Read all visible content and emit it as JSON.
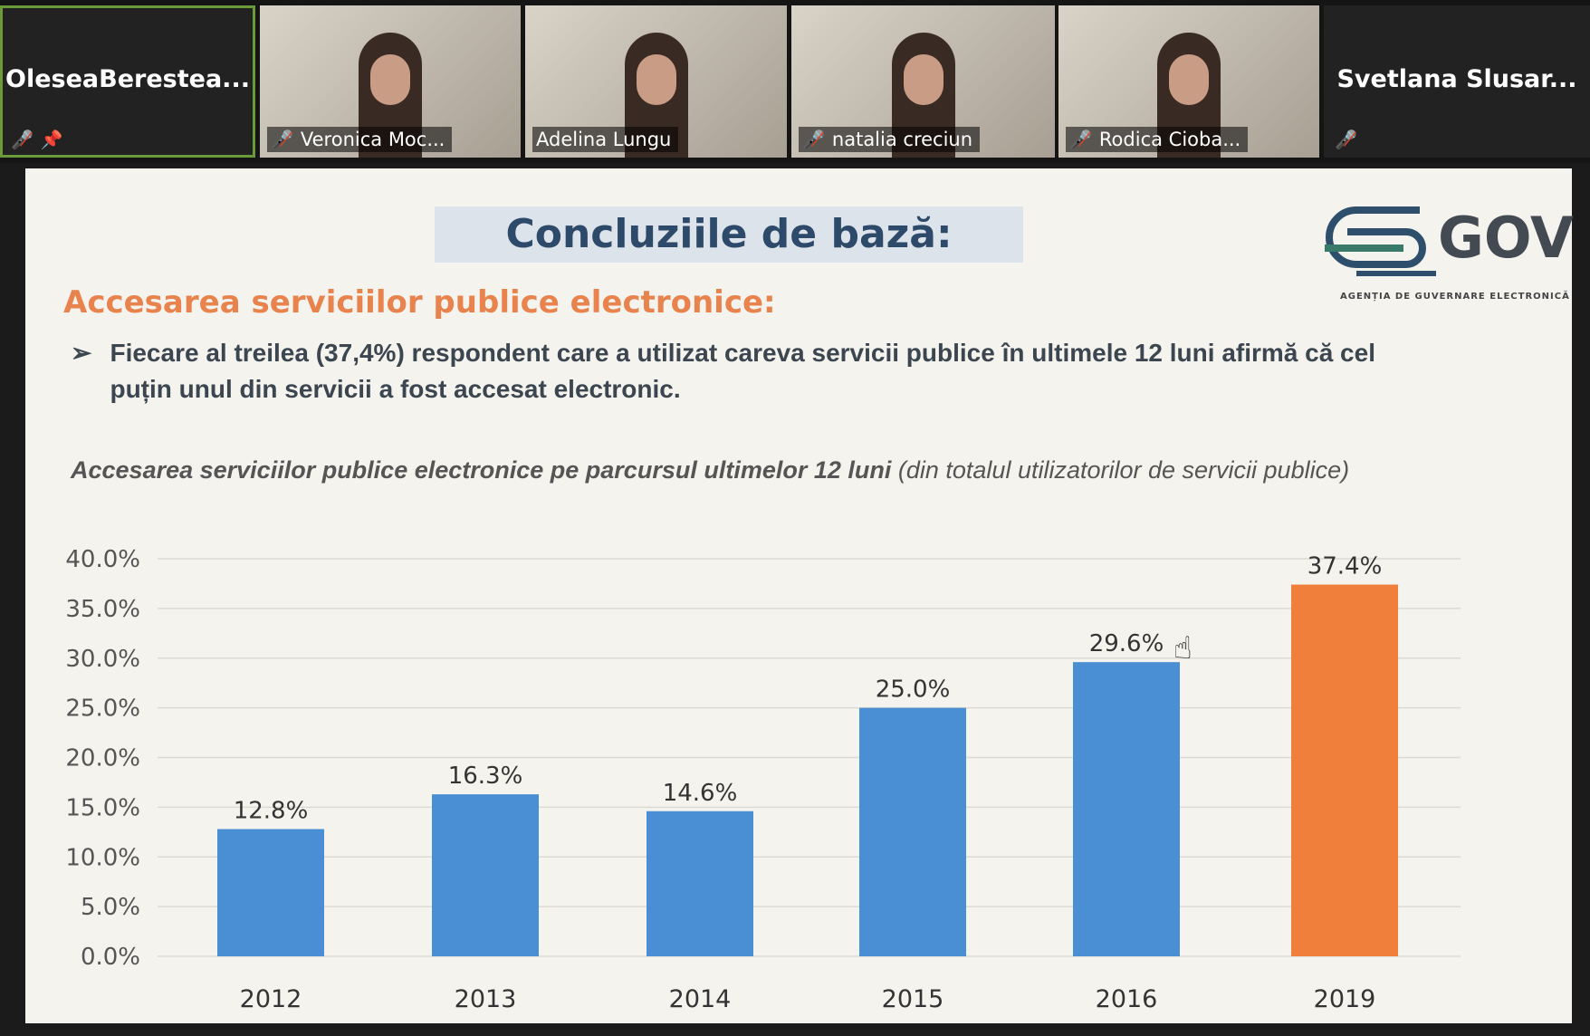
{
  "participants": [
    {
      "name": "OleseaBerestea...",
      "video": false,
      "muted": true,
      "pinned": true,
      "active": true
    },
    {
      "name": "Veronica Moc...",
      "video": true,
      "muted": true
    },
    {
      "name": "Adelina Lungu",
      "video": true,
      "muted": false
    },
    {
      "name": "natalia creciun",
      "video": true,
      "muted": true
    },
    {
      "name": "Rodica Cioba...",
      "video": true,
      "muted": true
    },
    {
      "name": "Svetlana Slusar...",
      "video": false,
      "muted": true
    }
  ],
  "slide": {
    "title": "Concluziile de bază:",
    "logo_text": "GOV",
    "logo_subtitle": "AGENȚIA DE GUVERNARE ELECTRONICĂ",
    "subtitle": "Accesarea serviciilor publice electronice:",
    "bullet": "Fiecare al treilea (37,4%)  respondent care a utilizat careva servicii publice în ultimele 12 luni afirmă că cel puțin unul din servicii a fost accesat electronic.",
    "chart_title_bold": "Accesarea serviciilor publice electronice pe parcursul ultimelor 12 luni",
    "chart_title_rest": " (din totalul utilizatorilor de servicii publice)"
  },
  "chart_data": {
    "type": "bar",
    "categories": [
      "2012",
      "2013",
      "2014",
      "2015",
      "2016",
      "2019"
    ],
    "values": [
      12.8,
      16.3,
      14.6,
      25.0,
      29.6,
      37.4
    ],
    "labels": [
      "12.8%",
      "16.3%",
      "14.6%",
      "25.0%",
      "29.6%",
      "37.4%"
    ],
    "colors": [
      "#4a8fd4",
      "#4a8fd4",
      "#4a8fd4",
      "#4a8fd4",
      "#4a8fd4",
      "#f07f3c"
    ],
    "ylim": [
      0,
      40
    ],
    "yticks": [
      "0.0%",
      "5.0%",
      "10.0%",
      "15.0%",
      "20.0%",
      "25.0%",
      "30.0%",
      "35.0%",
      "40.0%"
    ],
    "grid": true,
    "xlabel": "",
    "ylabel": ""
  }
}
